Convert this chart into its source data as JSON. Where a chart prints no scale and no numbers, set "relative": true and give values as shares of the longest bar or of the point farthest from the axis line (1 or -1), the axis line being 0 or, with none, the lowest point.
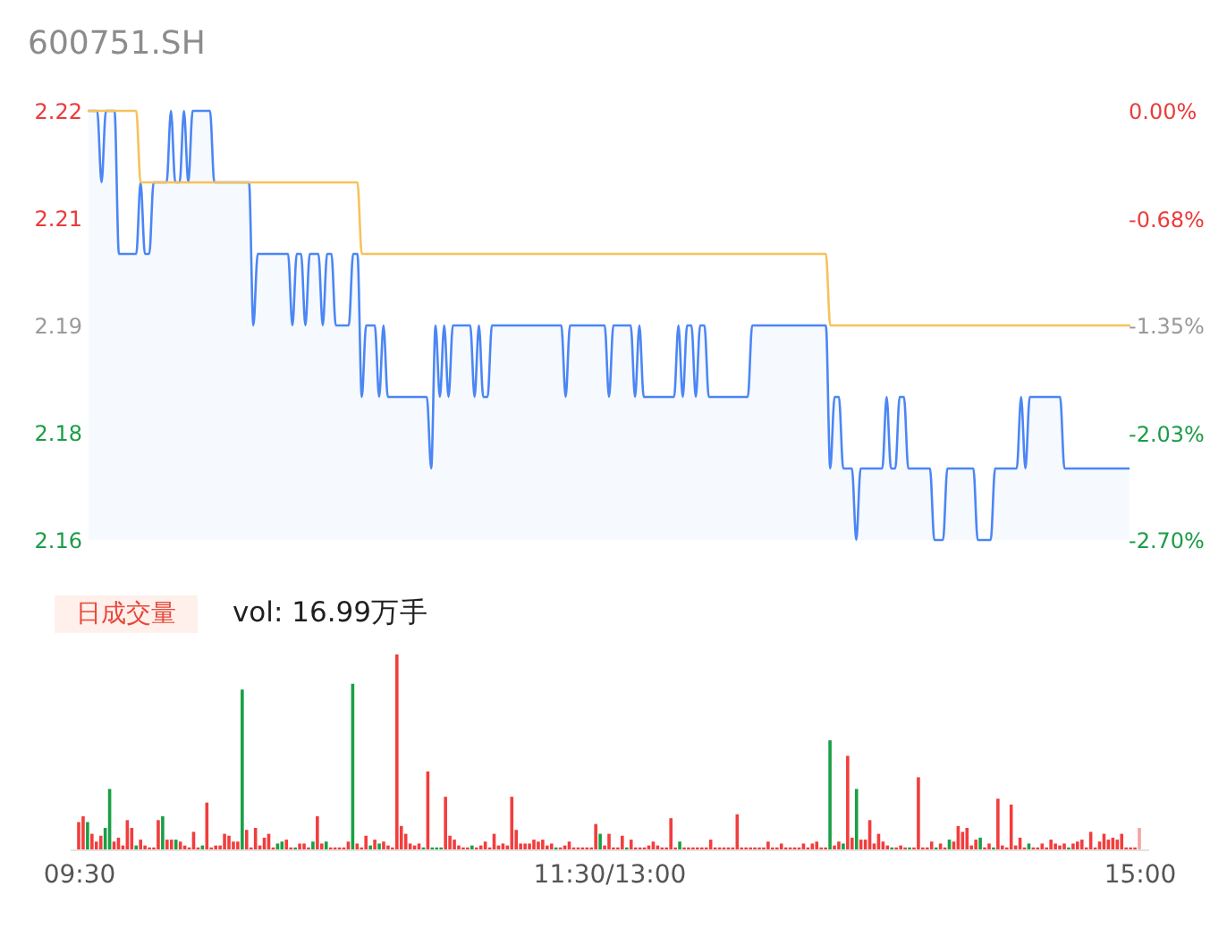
{
  "chart_data": [
    {
      "type": "line",
      "title": "600751.SH",
      "tick_labels": "y",
      "categories": [
        null,
        null,
        null,
        null,
        null,
        null,
        null,
        null,
        null,
        null,
        null,
        null,
        null,
        null,
        null,
        null,
        null,
        null,
        null,
        null,
        null,
        null,
        null,
        null,
        null,
        null,
        null,
        null,
        null,
        null,
        null,
        null,
        null,
        null,
        null,
        null,
        null,
        null,
        null,
        null,
        null,
        null,
        null,
        null,
        null,
        null,
        null,
        null,
        null,
        null,
        null,
        null,
        null,
        null,
        null,
        null,
        null,
        null,
        null,
        null,
        null,
        null,
        null,
        null,
        null,
        null,
        null,
        null,
        null,
        null,
        null,
        null,
        null,
        null,
        null,
        null,
        null,
        null,
        null,
        null,
        null,
        null,
        null,
        null,
        null,
        null,
        null,
        null,
        null,
        null,
        null,
        null,
        null,
        null,
        null,
        null,
        null,
        null,
        null,
        null,
        null,
        null,
        null,
        null,
        null,
        null,
        null,
        null,
        null,
        null,
        null,
        null,
        null,
        null,
        null,
        null,
        null,
        null,
        null,
        null,
        null,
        null,
        null,
        null,
        null,
        null,
        null,
        null,
        null,
        null,
        null,
        null,
        null,
        null,
        null,
        null,
        null,
        null,
        null,
        null,
        null,
        null,
        null,
        null,
        null,
        null,
        null,
        null,
        null,
        null,
        null,
        null,
        null,
        null,
        null,
        null,
        null,
        null,
        null,
        null,
        null,
        null,
        null,
        null,
        null,
        null,
        null,
        null,
        null,
        null,
        null,
        null,
        null,
        null,
        null,
        null,
        null,
        null,
        null,
        null,
        null,
        null,
        null,
        null,
        null,
        null,
        null,
        null,
        null,
        null,
        null,
        null,
        null,
        null,
        null,
        null,
        null,
        null,
        null,
        null,
        null,
        null,
        null,
        null,
        null,
        null,
        null,
        null,
        null,
        null,
        null,
        null,
        null,
        null,
        null,
        null,
        null,
        null,
        null,
        null,
        null,
        null,
        null,
        null,
        null,
        null,
        null,
        null,
        null,
        null,
        null,
        null,
        null,
        null,
        null,
        null,
        null,
        null,
        null,
        null,
        null
      ],
      "ylim": [
        2.16,
        2.22
      ],
      "yticks": [
        2.16,
        {
          "value": 2.175,
          "label": "2.18"
        },
        2.19,
        {
          "value": 2.205,
          "label": "2.21"
        },
        2.22
      ],
      "y2lim": [
        -2.7,
        0
      ],
      "y2ticks": [
        {
          "value": -2.7,
          "label": "-2.70%"
        },
        {
          "value": -2.03,
          "label": "-2.03%"
        },
        {
          "value": -1.35,
          "label": "-1.35%"
        },
        {
          "value": -0.68,
          "label": "-0.68%"
        },
        {
          "value": 0,
          "label": "0.00%"
        }
      ],
      "series": [
        {
          "type": "area",
          "color": "#4b86f5",
          "values": [
            2.22,
            2.22,
            2.22,
            2.21,
            2.22,
            2.22,
            2.22,
            2.2,
            2.2,
            2.2,
            2.2,
            2.2,
            2.21,
            2.2,
            2.2,
            2.21,
            2.21,
            2.21,
            2.21,
            2.22,
            2.21,
            2.21,
            2.22,
            2.21,
            2.22,
            2.22,
            2.22,
            2.22,
            2.22,
            2.21,
            2.21,
            2.21,
            2.21,
            2.21,
            2.21,
            2.21,
            2.21,
            2.21,
            2.19,
            2.2,
            2.2,
            2.2,
            2.2,
            2.2,
            2.2,
            2.2,
            2.2,
            2.19,
            2.2,
            2.2,
            2.19,
            2.2,
            2.2,
            2.2,
            2.19,
            2.2,
            2.2,
            2.19,
            2.19,
            2.19,
            2.19,
            2.2,
            2.2,
            2.18,
            2.19,
            2.19,
            2.19,
            2.18,
            2.19,
            2.18,
            2.18,
            2.18,
            2.18,
            2.18,
            2.18,
            2.18,
            2.18,
            2.18,
            2.18,
            2.17,
            2.19,
            2.18,
            2.19,
            2.18,
            2.19,
            2.19,
            2.19,
            2.19,
            2.19,
            2.18,
            2.19,
            2.18,
            2.18,
            2.19,
            2.19,
            2.19,
            2.19,
            2.19,
            2.19,
            2.19,
            2.19,
            2.19,
            2.19,
            2.19,
            2.19,
            2.19,
            2.19,
            2.19,
            2.19,
            2.19,
            2.18,
            2.19,
            2.19,
            2.19,
            2.19,
            2.19,
            2.19,
            2.19,
            2.19,
            2.19,
            2.18,
            2.19,
            2.19,
            2.19,
            2.19,
            2.19,
            2.18,
            2.19,
            2.18,
            2.18,
            2.18,
            2.18,
            2.18,
            2.18,
            2.18,
            2.18,
            2.19,
            2.18,
            2.19,
            2.19,
            2.18,
            2.19,
            2.19,
            2.18,
            2.18,
            2.18,
            2.18,
            2.18,
            2.18,
            2.18,
            2.18,
            2.18,
            2.18,
            2.19,
            2.19,
            2.19,
            2.19,
            2.19,
            2.19,
            2.19,
            2.19,
            2.19,
            2.19,
            2.19,
            2.19,
            2.19,
            2.19,
            2.19,
            2.19,
            2.19,
            2.19,
            2.17,
            2.18,
            2.18,
            2.17,
            2.17,
            2.17,
            2.16,
            2.17,
            2.17,
            2.17,
            2.17,
            2.17,
            2.17,
            2.18,
            2.17,
            2.17,
            2.18,
            2.18,
            2.17,
            2.17,
            2.17,
            2.17,
            2.17,
            2.17,
            2.16,
            2.16,
            2.16,
            2.17,
            2.17,
            2.17,
            2.17,
            2.17,
            2.17,
            2.17,
            2.16,
            2.16,
            2.16,
            2.16,
            2.17,
            2.17,
            2.17,
            2.17,
            2.17,
            2.17,
            2.18,
            2.17,
            2.18,
            2.18,
            2.18,
            2.18,
            2.18,
            2.18,
            2.18,
            2.18,
            2.17,
            2.17,
            2.17,
            2.17,
            2.17,
            2.17,
            2.17,
            2.17,
            2.17,
            2.17,
            2.17,
            2.17,
            2.17,
            2.17,
            2.17,
            2.17
          ]
        },
        {
          "type": "line",
          "color": "#f7c25a",
          "values": [
            2.22,
            2.22,
            2.22,
            2.22,
            2.22,
            2.22,
            2.22,
            2.22,
            2.22,
            2.22,
            2.22,
            2.22,
            2.21,
            2.21,
            2.21,
            2.21,
            2.21,
            2.21,
            2.21,
            2.21,
            2.21,
            2.21,
            2.21,
            2.21,
            2.21,
            2.21,
            2.21,
            2.21,
            2.21,
            2.21,
            2.21,
            2.21,
            2.21,
            2.21,
            2.21,
            2.21,
            2.21,
            2.21,
            2.21,
            2.21,
            2.21,
            2.21,
            2.21,
            2.21,
            2.21,
            2.21,
            2.21,
            2.21,
            2.21,
            2.21,
            2.21,
            2.21,
            2.21,
            2.21,
            2.21,
            2.21,
            2.21,
            2.21,
            2.21,
            2.21,
            2.21,
            2.21,
            2.21,
            2.2,
            2.2,
            2.2,
            2.2,
            2.2,
            2.2,
            2.2,
            2.2,
            2.2,
            2.2,
            2.2,
            2.2,
            2.2,
            2.2,
            2.2,
            2.2,
            2.2,
            2.2,
            2.2,
            2.2,
            2.2,
            2.2,
            2.2,
            2.2,
            2.2,
            2.2,
            2.2,
            2.2,
            2.2,
            2.2,
            2.2,
            2.2,
            2.2,
            2.2,
            2.2,
            2.2,
            2.2,
            2.2,
            2.2,
            2.2,
            2.2,
            2.2,
            2.2,
            2.2,
            2.2,
            2.2,
            2.2,
            2.2,
            2.2,
            2.2,
            2.2,
            2.2,
            2.2,
            2.2,
            2.2,
            2.2,
            2.2,
            2.2,
            2.2,
            2.2,
            2.2,
            2.2,
            2.2,
            2.2,
            2.2,
            2.2,
            2.2,
            2.2,
            2.2,
            2.2,
            2.2,
            2.2,
            2.2,
            2.2,
            2.2,
            2.2,
            2.2,
            2.2,
            2.2,
            2.2,
            2.2,
            2.2,
            2.2,
            2.2,
            2.2,
            2.2,
            2.2,
            2.2,
            2.2,
            2.2,
            2.2,
            2.2,
            2.2,
            2.2,
            2.2,
            2.2,
            2.2,
            2.2,
            2.2,
            2.2,
            2.2,
            2.2,
            2.2,
            2.2,
            2.2,
            2.2,
            2.2,
            2.2,
            2.19,
            2.19,
            2.19,
            2.19,
            2.19,
            2.19,
            2.19,
            2.19,
            2.19,
            2.19,
            2.19,
            2.19,
            2.19,
            2.19,
            2.19,
            2.19,
            2.19,
            2.19,
            2.19,
            2.19,
            2.19,
            2.19,
            2.19,
            2.19,
            2.19,
            2.19,
            2.19,
            2.19,
            2.19,
            2.19,
            2.19,
            2.19,
            2.19,
            2.19,
            2.19,
            2.19,
            2.19,
            2.19,
            2.19,
            2.19,
            2.19,
            2.19,
            2.19,
            2.19,
            2.19,
            2.19,
            2.19,
            2.19,
            2.19,
            2.19,
            2.19,
            2.19,
            2.19,
            2.19,
            2.19,
            2.19,
            2.19,
            2.19,
            2.19,
            2.19,
            2.19,
            2.19,
            2.19,
            2.19,
            2.19,
            2.19,
            2.19,
            2.19,
            2.19,
            2.19
          ]
        }
      ]
    },
    {
      "type": "bar",
      "relative": true,
      "annotations": [
        "日成交量",
        "vol: 16.99万手"
      ],
      "categories": [
        "09:30",
        null,
        null,
        null,
        null,
        null,
        null,
        null,
        null,
        null,
        null,
        null,
        null,
        null,
        null,
        null,
        null,
        null,
        null,
        null,
        null,
        null,
        null,
        null,
        null,
        null,
        null,
        null,
        null,
        null,
        null,
        null,
        null,
        null,
        null,
        null,
        null,
        null,
        null,
        null,
        null,
        null,
        null,
        null,
        null,
        null,
        null,
        null,
        null,
        null,
        null,
        null,
        null,
        null,
        null,
        null,
        null,
        null,
        null,
        null,
        null,
        null,
        null,
        null,
        null,
        null,
        null,
        null,
        null,
        null,
        null,
        null,
        null,
        null,
        null,
        null,
        null,
        null,
        null,
        null,
        null,
        null,
        null,
        null,
        null,
        null,
        null,
        null,
        null,
        null,
        null,
        null,
        null,
        null,
        null,
        null,
        null,
        null,
        null,
        null,
        null,
        null,
        null,
        null,
        null,
        null,
        null,
        null,
        null,
        null,
        null,
        null,
        null,
        null,
        null,
        null,
        null,
        null,
        null,
        null,
        "11:30/13:00",
        null,
        null,
        null,
        null,
        null,
        null,
        null,
        null,
        null,
        null,
        null,
        null,
        null,
        null,
        null,
        null,
        null,
        null,
        null,
        null,
        null,
        null,
        null,
        null,
        null,
        null,
        null,
        null,
        null,
        null,
        null,
        null,
        null,
        null,
        null,
        null,
        null,
        null,
        null,
        null,
        null,
        null,
        null,
        null,
        null,
        null,
        null,
        null,
        null,
        null,
        null,
        null,
        null,
        null,
        null,
        null,
        null,
        null,
        null,
        null,
        null,
        null,
        null,
        null,
        null,
        null,
        null,
        null,
        null,
        null,
        null,
        null,
        null,
        null,
        null,
        null,
        null,
        null,
        null,
        null,
        null,
        null,
        null,
        null,
        null,
        null,
        null,
        null,
        null,
        null,
        null,
        null,
        null,
        null,
        null,
        null,
        null,
        null,
        null,
        null,
        null,
        null,
        null,
        null,
        null,
        null,
        null,
        null,
        null,
        null,
        null,
        null,
        null,
        null,
        null,
        null,
        null,
        null,
        null,
        "15:00"
      ],
      "values": [
        0.14,
        0.17,
        0.14,
        0.08,
        0.04,
        0.07,
        0.11,
        0.31,
        0.04,
        0.06,
        0.02,
        0.15,
        0.11,
        0.02,
        0.05,
        0.02,
        0.01,
        0.01,
        0.15,
        0.17,
        0.05,
        0.05,
        0.05,
        0.04,
        0.02,
        0.01,
        0.09,
        0.01,
        0.02,
        0.24,
        0.01,
        0.02,
        0.02,
        0.08,
        0.07,
        0.04,
        0.04,
        0.82,
        0.1,
        0.01,
        0.11,
        0.02,
        0.06,
        0.08,
        0.01,
        0.03,
        0.04,
        0.05,
        0.01,
        0.01,
        0.03,
        0.03,
        0.01,
        0.04,
        0.17,
        0.03,
        0.04,
        0.01,
        0.01,
        0.01,
        0.01,
        0.04,
        0.85,
        0.03,
        0.01,
        0.07,
        0.02,
        0.05,
        0.03,
        0.04,
        0.02,
        0.01,
        1,
        0.12,
        0.08,
        0.03,
        0.02,
        0.03,
        0.01,
        0.4,
        0.01,
        0.01,
        0.01,
        0.27,
        0.07,
        0.05,
        0.02,
        0.01,
        0.01,
        0.02,
        0.01,
        0.02,
        0.04,
        0.01,
        0.08,
        0.02,
        0.03,
        0.02,
        0.27,
        0.1,
        0.03,
        0.03,
        0.03,
        0.05,
        0.04,
        0.05,
        0.02,
        0.03,
        0.01,
        0.01,
        0.02,
        0.04,
        0.01,
        0.01,
        0.01,
        0.01,
        0.01,
        0.13,
        0.08,
        0.02,
        0.08,
        0.01,
        0.01,
        0.07,
        0.01,
        0.05,
        0.01,
        0.01,
        0.01,
        0.02,
        0.04,
        0.02,
        0.01,
        0.01,
        0.16,
        0.01,
        0.04,
        0.01,
        0.01,
        0.01,
        0.01,
        0.01,
        0.01,
        0.05,
        0.01,
        0.01,
        0.01,
        0.01,
        0.01,
        0.18,
        0.01,
        0.01,
        0.01,
        0.01,
        0.01,
        0.01,
        0.04,
        0.01,
        0.01,
        0.03,
        0.01,
        0.01,
        0.01,
        0.01,
        0.03,
        0.01,
        0.03,
        0.04,
        0.01,
        0.01,
        0.56,
        0.02,
        0.04,
        0.03,
        0.48,
        0.06,
        0.31,
        0.05,
        0.05,
        0.15,
        0.03,
        0.08,
        0.04,
        0.02,
        0.01,
        0.01,
        0.02,
        0.01,
        0.01,
        0.01,
        0.37,
        0.01,
        0.01,
        0.04,
        0.01,
        0.03,
        0.01,
        0.05,
        0.04,
        0.12,
        0.09,
        0.11,
        0.02,
        0.05,
        0.06,
        0.01,
        0.03,
        0.01,
        0.26,
        0.02,
        0.01,
        0.23,
        0.02,
        0.06,
        0.01,
        0.03,
        0.01,
        0.01,
        0.03,
        0.01,
        0.05,
        0.03,
        0.02,
        0.03,
        0.01,
        0.03,
        0.04,
        0.05,
        0.01,
        0.09,
        0.01,
        0.04,
        0.08,
        0.05,
        0.06,
        0.05,
        0.08,
        0.01,
        0.01,
        0.01,
        0.11
      ],
      "colors": [
        "#f23d3d",
        "#f23d3d",
        "#1a9f45",
        "#f23d3d",
        "#f23d3d",
        "#f23d3d",
        "#1a9f45",
        "#1a9f45",
        "#f23d3d",
        "#f23d3d",
        "#f23d3d",
        "#f23d3d",
        "#f23d3d",
        "#1a9f45",
        "#f23d3d",
        "#f23d3d",
        "#f23d3d",
        "#f23d3d",
        "#f23d3d",
        "#1a9f45",
        "#f23d3d",
        "#f23d3d",
        "#1a9f45",
        "#f23d3d",
        "#f23d3d",
        "#f23d3d",
        "#f23d3d",
        "#f23d3d",
        "#1a9f45",
        "#f23d3d",
        "#f23d3d",
        "#f23d3d",
        "#f23d3d",
        "#f23d3d",
        "#f23d3d",
        "#f23d3d",
        "#f23d3d",
        "#1a9f45",
        "#f23d3d",
        "#f23d3d",
        "#f23d3d",
        "#f23d3d",
        "#f23d3d",
        "#f23d3d",
        "#f23d3d",
        "#1a9f45",
        "#1a9f45",
        "#f23d3d",
        "#f23d3d",
        "#1a9f45",
        "#f23d3d",
        "#f23d3d",
        "#f23d3d",
        "#1a9f45",
        "#f23d3d",
        "#f23d3d",
        "#1a9f45",
        "#f23d3d",
        "#f23d3d",
        "#f23d3d",
        "#f23d3d",
        "#f23d3d",
        "#1a9f45",
        "#f23d3d",
        "#f23d3d",
        "#f23d3d",
        "#1a9f45",
        "#f23d3d",
        "#1a9f45",
        "#f23d3d",
        "#f23d3d",
        "#f23d3d",
        "#f23d3d",
        "#f23d3d",
        "#f23d3d",
        "#f23d3d",
        "#f23d3d",
        "#f23d3d",
        "#1a9f45",
        "#f23d3d",
        "#1a9f45",
        "#1a9f45",
        "#1a9f45",
        "#f23d3d",
        "#f23d3d",
        "#f23d3d",
        "#f23d3d",
        "#f23d3d",
        "#f23d3d",
        "#1a9f45",
        "#f23d3d",
        "#f23d3d",
        "#f23d3d",
        "#f23d3d",
        "#f23d3d",
        "#f23d3d",
        "#f23d3d",
        "#f23d3d",
        "#f23d3d",
        "#f23d3d",
        "#f23d3d",
        "#f23d3d",
        "#f23d3d",
        "#f23d3d",
        "#f23d3d",
        "#f23d3d",
        "#f23d3d",
        "#f23d3d",
        "#1a9f45",
        "#f23d3d",
        "#f23d3d",
        "#f23d3d",
        "#f23d3d",
        "#f23d3d",
        "#f23d3d",
        "#f23d3d",
        "#f23d3d",
        "#f23d3d",
        "#1a9f45",
        "#f23d3d",
        "#f23d3d",
        "#f23d3d",
        "#f23d3d",
        "#f23d3d",
        "#1a9f45",
        "#f23d3d",
        "#f23d3d",
        "#f23d3d",
        "#f23d3d",
        "#f23d3d",
        "#f23d3d",
        "#f23d3d",
        "#f23d3d",
        "#f23d3d",
        "#f23d3d",
        "#f23d3d",
        "#1a9f45",
        "#f23d3d",
        "#f23d3d",
        "#f23d3d",
        "#f23d3d",
        "#f23d3d",
        "#f23d3d",
        "#f23d3d",
        "#f23d3d",
        "#f23d3d",
        "#f23d3d",
        "#f23d3d",
        "#f23d3d",
        "#f23d3d",
        "#f23d3d",
        "#f23d3d",
        "#f23d3d",
        "#f23d3d",
        "#f23d3d",
        "#f23d3d",
        "#f23d3d",
        "#f23d3d",
        "#f23d3d",
        "#f23d3d",
        "#f23d3d",
        "#f23d3d",
        "#f23d3d",
        "#f23d3d",
        "#f23d3d",
        "#f23d3d",
        "#f23d3d",
        "#f23d3d",
        "#f23d3d",
        "#f23d3d",
        "#1a9f45",
        "#f23d3d",
        "#f23d3d",
        "#1a9f45",
        "#f23d3d",
        "#f23d3d",
        "#1a9f45",
        "#f23d3d",
        "#f23d3d",
        "#f23d3d",
        "#f23d3d",
        "#f23d3d",
        "#f23d3d",
        "#f23d3d",
        "#1a9f45",
        "#f23d3d",
        "#f23d3d",
        "#f23d3d",
        "#1a9f45",
        "#f23d3d",
        "#f23d3d",
        "#f23d3d",
        "#f23d3d",
        "#f23d3d",
        "#1a9f45",
        "#f23d3d",
        "#f23d3d",
        "#1a9f45",
        "#f23d3d",
        "#f23d3d",
        "#f23d3d",
        "#f23d3d",
        "#f23d3d",
        "#f23d3d",
        "#1a9f45",
        "#f23d3d",
        "#f23d3d",
        "#1a9f45",
        "#f23d3d",
        "#f23d3d",
        "#f23d3d",
        "#f23d3d",
        "#f23d3d",
        "#f23d3d",
        "#f23d3d",
        "#1a9f45",
        "#f23d3d",
        "#f23d3d",
        "#f23d3d",
        "#f23d3d",
        "#f23d3d",
        "#f23d3d",
        "#f23d3d",
        "#f23d3d",
        "#1a9f45",
        "#f23d3d",
        "#f23d3d",
        "#f23d3d",
        "#f23d3d",
        "#f23d3d",
        "#f23d3d",
        "#f23d3d",
        "#f23d3d",
        "#f23d3d",
        "#f23d3d",
        "#f23d3d",
        "#f23d3d",
        "#f23d3d",
        "#f23d3d",
        "#f23d3d",
        "#f7a3a3"
      ]
    }
  ]
}
